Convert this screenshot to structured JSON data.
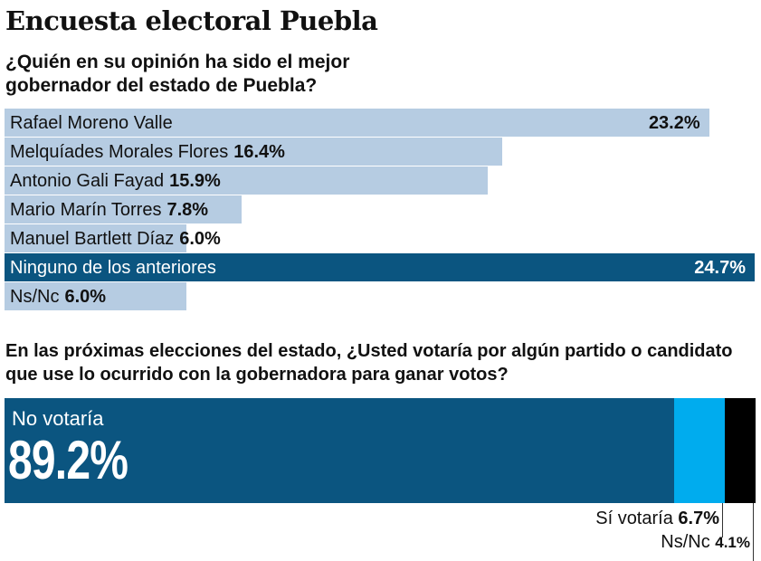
{
  "title": "Encuesta electoral Puebla",
  "chart_data": [
    {
      "type": "bar",
      "orientation": "horizontal",
      "title": "¿Quién en su opinión ha sido el mejor gobernador del estado de Puebla?",
      "categories": [
        "Rafael Moreno Valle",
        "Melquíades Morales Flores",
        "Antonio Gali Fayad",
        "Mario Marín Torres",
        "Manuel Bartlett Díaz",
        "Ninguno de los anteriores",
        "Ns/Nc"
      ],
      "values": [
        23.2,
        16.4,
        15.9,
        7.8,
        6.0,
        24.7,
        6.0
      ],
      "labels": [
        "23.2%",
        "16.4%",
        "15.9%",
        "7.8%",
        "6.0%",
        "24.7%",
        "6.0%"
      ],
      "colors": [
        "#b6cce2",
        "#b6cce2",
        "#b6cce2",
        "#b6cce2",
        "#b6cce2",
        "#0b5580",
        "#b6cce2"
      ],
      "unit": "%"
    },
    {
      "type": "bar",
      "orientation": "stacked-horizontal",
      "title": "En las próximas elecciones del estado, ¿Usted votaría por algún partido o candidato que use lo ocurrido con la gobernadora para ganar votos?",
      "categories": [
        "No votaría",
        "Sí votaría",
        "Ns/Nc"
      ],
      "values": [
        89.2,
        6.7,
        4.1
      ],
      "labels": [
        "89.2%",
        "6.7%",
        "4.1%"
      ],
      "colors": [
        "#0b5580",
        "#00acee",
        "#000000"
      ],
      "unit": "%"
    }
  ]
}
